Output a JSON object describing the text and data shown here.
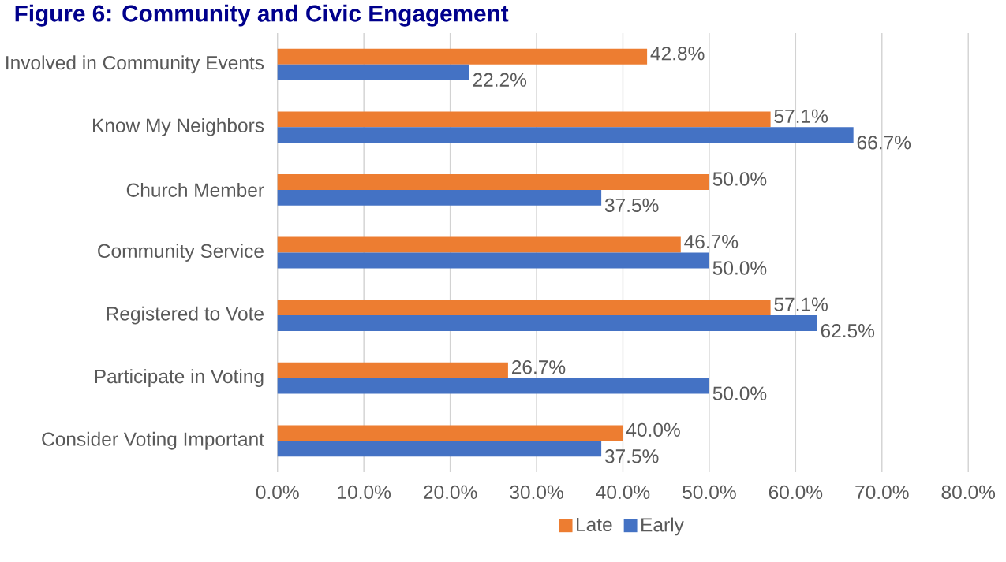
{
  "chart_data": {
    "type": "bar",
    "orientation": "horizontal",
    "title": "Figure 6: Community and Civic Engagement",
    "categories": [
      "Involved in Community Events",
      "Know My Neighbors",
      "Church Member",
      "Community Service",
      "Registered to Vote",
      "Participate in Voting",
      "Consider Voting Important"
    ],
    "series": [
      {
        "name": "Late",
        "color": "#ed7d31",
        "values": [
          42.8,
          57.1,
          50.0,
          46.7,
          57.1,
          26.7,
          40.0
        ],
        "value_labels": [
          "42.8%",
          "57.1%",
          "50.0%",
          "46.7%",
          "57.1%",
          "26.7%",
          "40.0%"
        ]
      },
      {
        "name": "Early",
        "color": "#4472c4",
        "values": [
          22.2,
          66.7,
          37.5,
          50.0,
          62.5,
          50.0,
          37.5
        ],
        "value_labels": [
          "22.2%",
          "66.7%",
          "37.5%",
          "50.0%",
          "62.5%",
          "50.0%",
          "37.5%"
        ]
      }
    ],
    "xlim": [
      0,
      80
    ],
    "xticks": [
      {
        "value": 0,
        "label": "0.0%"
      },
      {
        "value": 10,
        "label": "10.0%"
      },
      {
        "value": 20,
        "label": "20.0%"
      },
      {
        "value": 30,
        "label": "30.0%"
      },
      {
        "value": 40,
        "label": "40.0%"
      },
      {
        "value": 50,
        "label": "50.0%"
      },
      {
        "value": 60,
        "label": "60.0%"
      },
      {
        "value": 70,
        "label": "70.0%"
      },
      {
        "value": 80,
        "label": "80.0%"
      }
    ],
    "grid": "x",
    "legend": "bottom"
  }
}
